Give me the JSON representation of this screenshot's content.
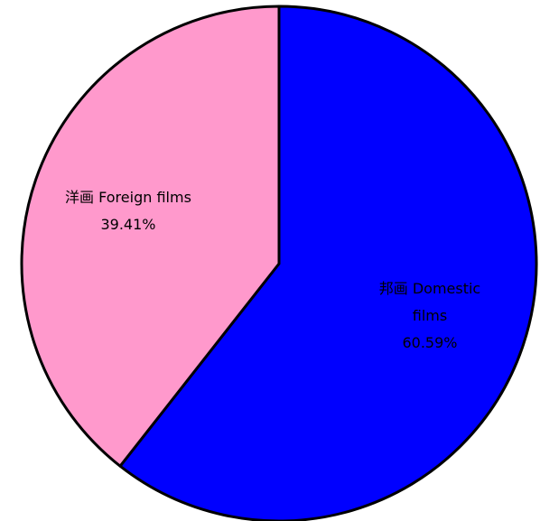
{
  "chart_data": {
    "type": "pie",
    "categories": [
      "邦画 Domestic films",
      "洋画 Foreign films"
    ],
    "values": [
      60.59,
      39.41
    ],
    "value_labels": [
      "60.59%",
      "39.41%"
    ],
    "colors": [
      "#0000ff",
      "#ff99cc"
    ]
  }
}
